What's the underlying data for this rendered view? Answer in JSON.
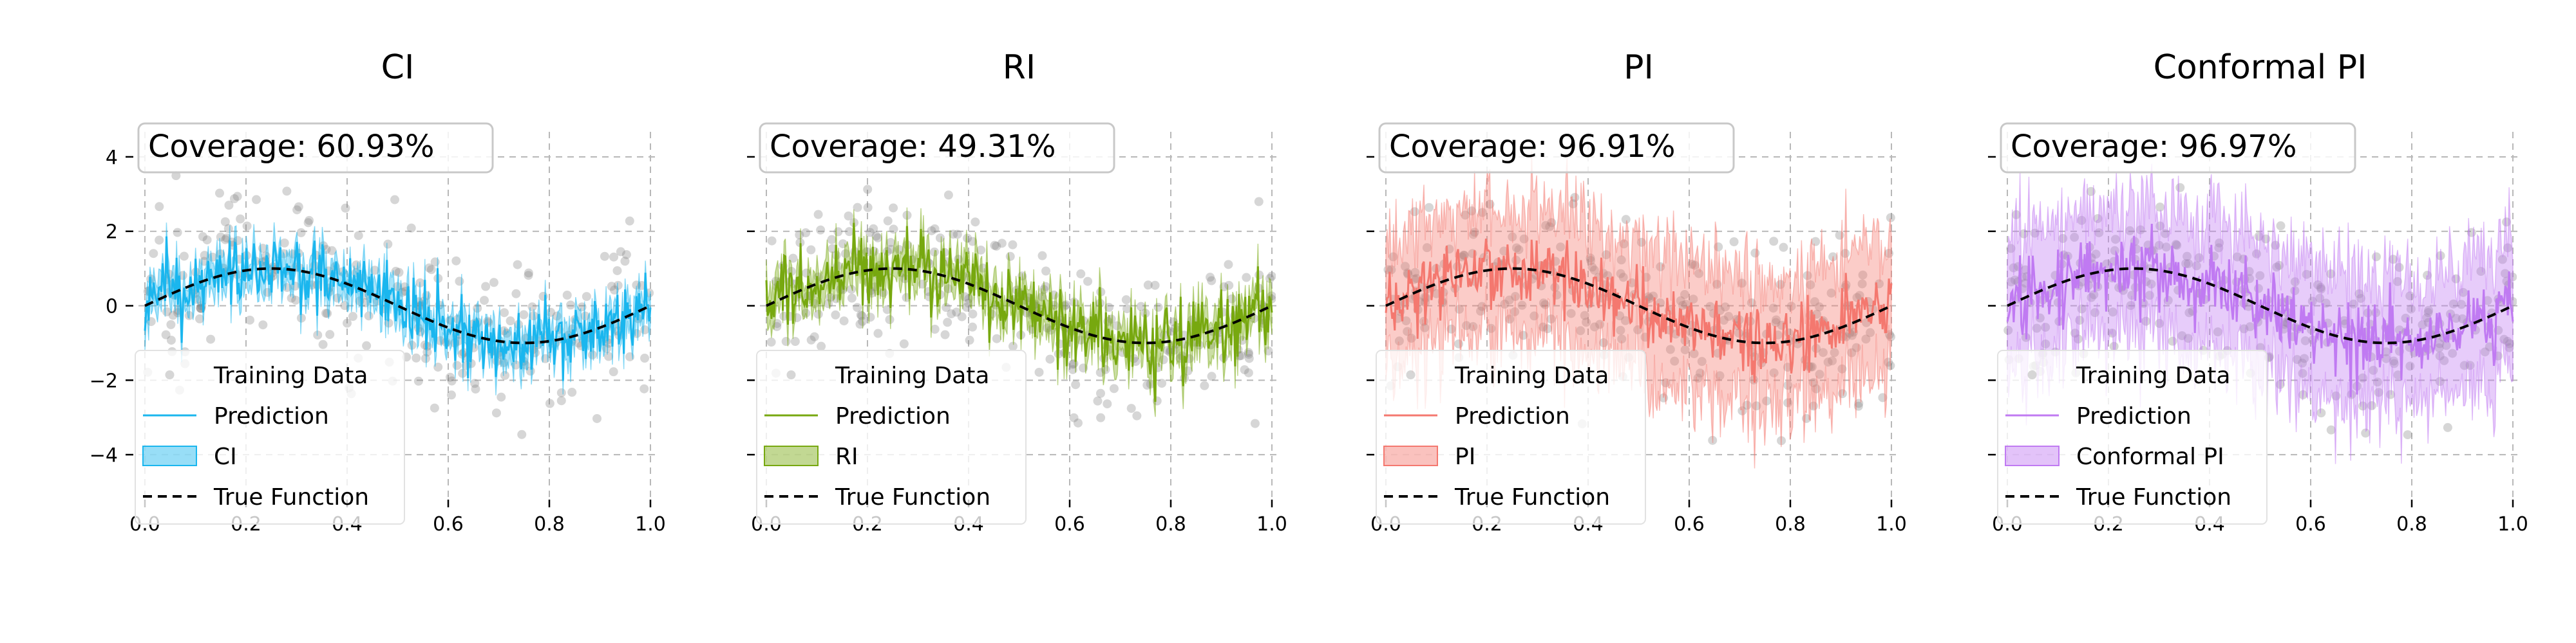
{
  "chart_data": [
    {
      "type": "line",
      "title": "CI",
      "coverage_text": "Coverage: 60.93%",
      "color": "#1ab6ee",
      "band_label": "CI",
      "band_half_width": 0.45,
      "pred_noise": 0.75,
      "xlim": [
        0.0,
        1.0
      ],
      "ylim": [
        -5,
        4.5
      ],
      "xticks": [
        0.0,
        0.2,
        0.4,
        0.6,
        0.8,
        1.0
      ],
      "xtick_labels": [
        "0.0",
        "0.2",
        "0.4",
        "0.6",
        "0.8",
        "1.0"
      ],
      "yticks": [
        -4,
        -2,
        0,
        2,
        4
      ],
      "ytick_labels": [
        "−4",
        "−2",
        "0",
        "2",
        "4"
      ],
      "show_ytick_labels": true,
      "legend": [
        "Training Data",
        "Prediction",
        "CI",
        "True Function"
      ],
      "legend_position": "lower-left",
      "grid": true,
      "true_function": "sin(2*pi*x)"
    },
    {
      "type": "line",
      "title": "RI",
      "coverage_text": "Coverage: 49.31%",
      "color": "#77a80f",
      "band_label": "RI",
      "band_half_width": 0.5,
      "pred_noise": 0.8,
      "xlim": [
        0.0,
        1.0
      ],
      "ylim": [
        -5,
        4.5
      ],
      "xticks": [
        0.0,
        0.2,
        0.4,
        0.6,
        0.8,
        1.0
      ],
      "xtick_labels": [
        "0.0",
        "0.2",
        "0.4",
        "0.6",
        "0.8",
        "1.0"
      ],
      "yticks": [
        -4,
        -2,
        0,
        2,
        4
      ],
      "ytick_labels": [
        "",
        "",
        "",
        "",
        ""
      ],
      "show_ytick_labels": false,
      "legend": [
        "Training Data",
        "Prediction",
        "RI",
        "True Function"
      ],
      "legend_position": "lower-left",
      "grid": true,
      "true_function": "sin(2*pi*x)"
    },
    {
      "type": "line",
      "title": "PI",
      "coverage_text": "Coverage: 96.91%",
      "color": "#f4786f",
      "band_label": "PI",
      "band_half_width": 1.9,
      "pred_noise": 0.8,
      "xlim": [
        0.0,
        1.0
      ],
      "ylim": [
        -5,
        4.5
      ],
      "xticks": [
        0.0,
        0.2,
        0.4,
        0.6,
        0.8,
        1.0
      ],
      "xtick_labels": [
        "0.0",
        "0.2",
        "0.4",
        "0.6",
        "0.8",
        "1.0"
      ],
      "yticks": [
        -4,
        -2,
        0,
        2,
        4
      ],
      "ytick_labels": [
        "",
        "",
        "",
        "",
        ""
      ],
      "show_ytick_labels": false,
      "legend": [
        "Training Data",
        "Prediction",
        "PI",
        "True Function"
      ],
      "legend_position": "lower-left",
      "grid": true,
      "true_function": "sin(2*pi*x)"
    },
    {
      "type": "line",
      "title": "Conformal PI",
      "coverage_text": "Coverage: 96.97%",
      "color": "#c07af2",
      "band_label": "Conformal PI",
      "band_half_width": 1.9,
      "pred_noise": 0.8,
      "xlim": [
        0.0,
        1.0
      ],
      "ylim": [
        -5,
        4.5
      ],
      "xticks": [
        0.0,
        0.2,
        0.4,
        0.6,
        0.8,
        1.0
      ],
      "xtick_labels": [
        "0.0",
        "0.2",
        "0.4",
        "0.6",
        "0.8",
        "1.0"
      ],
      "yticks": [
        -4,
        -2,
        0,
        2,
        4
      ],
      "ytick_labels": [
        "",
        "",
        "",
        "",
        ""
      ],
      "show_ytick_labels": false,
      "legend": [
        "Training Data",
        "Prediction",
        "Conformal PI",
        "True Function"
      ],
      "legend_position": "lower-left",
      "grid": true,
      "true_function": "sin(2*pi*x)"
    }
  ]
}
